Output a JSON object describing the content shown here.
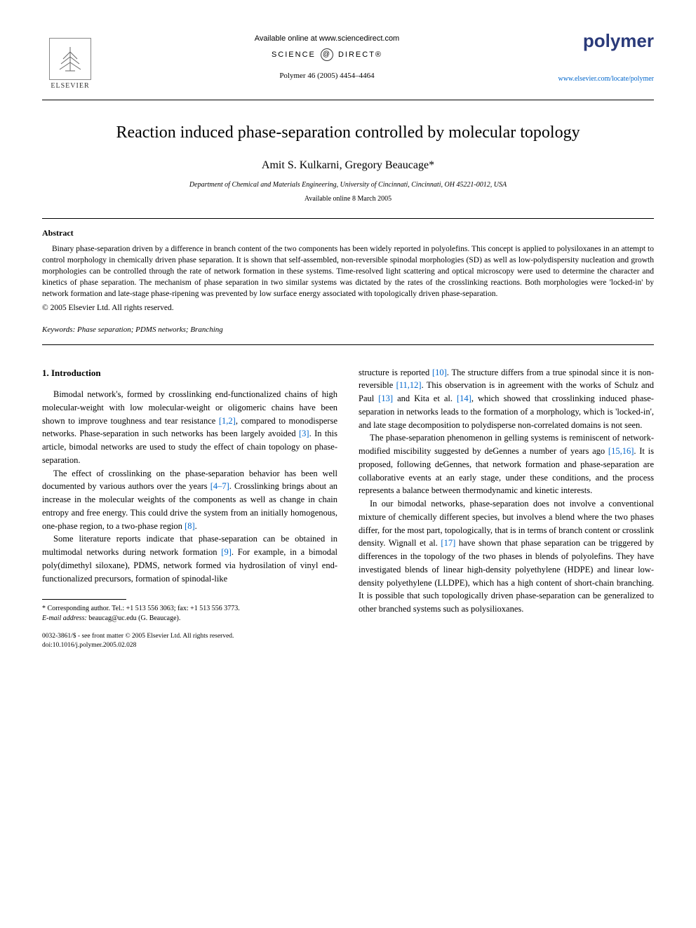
{
  "header": {
    "elsevier_label": "ELSEVIER",
    "available_online": "Available online at www.sciencedirect.com",
    "science_direct_left": "SCIENCE",
    "science_direct_right": "DIRECT®",
    "journal_ref": "Polymer 46 (2005) 4454–4464",
    "polymer_logo": "polymer",
    "polymer_url": "www.elsevier.com/locate/polymer"
  },
  "article": {
    "title": "Reaction induced phase-separation controlled by molecular topology",
    "authors": "Amit S. Kulkarni, Gregory Beaucage*",
    "affiliation": "Department of Chemical and Materials Engineering, University of Cincinnati, Cincinnati, OH 45221-0012, USA",
    "pub_date": "Available online 8 March 2005"
  },
  "abstract": {
    "heading": "Abstract",
    "text": "Binary phase-separation driven by a difference in branch content of the two components has been widely reported in polyolefins. This concept is applied to polysiloxanes in an attempt to control morphology in chemically driven phase separation. It is shown that self-assembled, non-reversible spinodal morphologies (SD) as well as low-polydispersity nucleation and growth morphologies can be controlled through the rate of network formation in these systems. Time-resolved light scattering and optical microscopy were used to determine the character and kinetics of phase separation. The mechanism of phase separation in two similar systems was dictated by the rates of the crosslinking reactions. Both morphologies were 'locked-in' by network formation and late-stage phase-ripening was prevented by low surface energy associated with topologically driven phase-separation.",
    "copyright": "© 2005 Elsevier Ltd. All rights reserved."
  },
  "keywords": {
    "label": "Keywords:",
    "text": "Phase separation; PDMS networks; Branching"
  },
  "body": {
    "section_heading": "1. Introduction",
    "left_paragraphs": [
      "Bimodal network's, formed by crosslinking end-functionalized chains of high molecular-weight with low molecular-weight or oligomeric chains have been shown to improve toughness and tear resistance [1,2], compared to monodisperse networks. Phase-separation in such networks has been largely avoided [3]. In this article, bimodal networks are used to study the effect of chain topology on phase-separation.",
      "The effect of crosslinking on the phase-separation behavior has been well documented by various authors over the years [4–7]. Crosslinking brings about an increase in the molecular weights of the components as well as change in chain entropy and free energy. This could drive the system from an initially homogenous, one-phase region, to a two-phase region [8].",
      "Some literature reports indicate that phase-separation can be obtained in multimodal networks during network formation [9]. For example, in a bimodal poly(dimethyl siloxane), PDMS, network formed via hydrosilation of vinyl end-functionalized precursors, formation of spinodal-like"
    ],
    "right_paragraphs": [
      "structure is reported [10]. The structure differs from a true spinodal since it is non-reversible [11,12]. This observation is in agreement with the works of Schulz and Paul [13] and Kita et al. [14], which showed that crosslinking induced phase-separation in networks leads to the formation of a morphology, which is 'locked-in', and late stage decomposition to polydisperse non-correlated domains is not seen.",
      "The phase-separation phenomenon in gelling systems is reminiscent of network-modified miscibility suggested by deGennes a number of years ago [15,16]. It is proposed, following deGennes, that network formation and phase-separation are collaborative events at an early stage, under these conditions, and the process represents a balance between thermodynamic and kinetic interests.",
      "In our bimodal networks, phase-separation does not involve a conventional mixture of chemically different species, but involves a blend where the two phases differ, for the most part, topologically, that is in terms of branch content or crosslink density. Wignall et al. [17] have shown that phase separation can be triggered by differences in the topology of the two phases in blends of polyolefins. They have investigated blends of linear high-density polyethylene (HDPE) and linear low-density polyethylene (LLDPE), which has a high content of short-chain branching. It is possible that such topologically driven phase-separation can be generalized to other branched systems such as polysilioxanes."
    ],
    "refs_left": {
      "r1": "[1,2]",
      "r2": "[3]",
      "r3": "[4–7]",
      "r4": "[8]",
      "r5": "[9]"
    },
    "refs_right": {
      "r1": "[10]",
      "r2": "[11,12]",
      "r3": "[13]",
      "r4": "[14]",
      "r5": "[15,16]",
      "r6": "[17]"
    }
  },
  "footnote": {
    "corresponding": "* Corresponding author. Tel.: +1 513 556 3063; fax: +1 513 556 3773.",
    "email_label": "E-mail address:",
    "email": "beaucag@uc.edu (G. Beaucage)."
  },
  "footer": {
    "issn": "0032-3861/$ - see front matter © 2005 Elsevier Ltd. All rights reserved.",
    "doi": "doi:10.1016/j.polymer.2005.02.028"
  },
  "colors": {
    "link": "#0066cc",
    "polymer_brand": "#2a3a7a",
    "text": "#000000",
    "background": "#ffffff"
  }
}
